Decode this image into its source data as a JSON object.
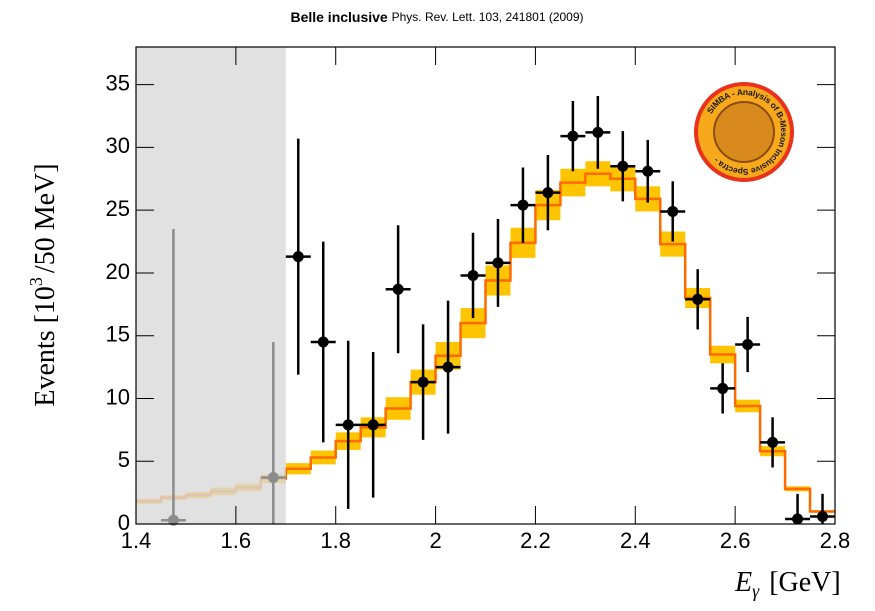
{
  "chart_data": {
    "type": "errorbar",
    "title": "Belle inclusive",
    "subtitle": "Phys. Rev. Lett. 103, 241801 (2009)",
    "x_label": [
      "E",
      "γ",
      "[GeV]"
    ],
    "y_label": [
      "Events [10",
      "3",
      "/50 MeV]"
    ],
    "logo_text": "SIMBA - Analysis of B-Meson Inclusive Spectra -",
    "xlim": [
      1.4,
      2.8
    ],
    "ylim": [
      0,
      38
    ],
    "xticks": [
      1.4,
      1.6,
      1.8,
      2,
      2.2,
      2.4,
      2.6,
      2.8
    ],
    "yticks": [
      0,
      5,
      10,
      15,
      20,
      25,
      30,
      35
    ],
    "excluded_range": [
      1.4,
      1.7
    ],
    "excluded_color": "#d9d9d9",
    "model": {
      "color": "#ff6a00",
      "band_color": "#ffc400",
      "bins": [
        1.4,
        1.45,
        1.5,
        1.55,
        1.6,
        1.65,
        1.7,
        1.75,
        1.8,
        1.85,
        1.9,
        1.95,
        2.0,
        2.05,
        2.1,
        2.15,
        2.2,
        2.25,
        2.3,
        2.35,
        2.4,
        2.45,
        2.5,
        2.55,
        2.6,
        2.65,
        2.7,
        2.75,
        2.8
      ],
      "values": [
        1.8,
        2.1,
        2.3,
        2.6,
        2.9,
        3.6,
        4.4,
        5.3,
        6.6,
        7.7,
        9.2,
        11.3,
        13.4,
        16.0,
        19.4,
        22.4,
        25.4,
        27.2,
        27.9,
        27.5,
        25.9,
        22.3,
        18.0,
        13.5,
        9.4,
        5.8,
        2.8,
        1.0
      ],
      "errors": [
        0.2,
        0.2,
        0.25,
        0.3,
        0.3,
        0.35,
        0.45,
        0.55,
        0.7,
        0.8,
        0.9,
        1.0,
        1.1,
        1.2,
        1.2,
        1.2,
        1.2,
        1.1,
        1.0,
        1.0,
        1.0,
        1.0,
        0.8,
        0.7,
        0.5,
        0.4,
        0.2,
        0.1
      ]
    },
    "excluded_data": {
      "color": "#8c8c8c",
      "x": [
        1.475,
        1.675
      ],
      "values": [
        0.3,
        3.7
      ],
      "errors": [
        23.2,
        10.8
      ]
    },
    "data": {
      "color": "#000000",
      "x": [
        1.725,
        1.775,
        1.825,
        1.875,
        1.925,
        1.975,
        2.025,
        2.075,
        2.125,
        2.175,
        2.225,
        2.275,
        2.325,
        2.375,
        2.425,
        2.475,
        2.525,
        2.575,
        2.625,
        2.675,
        2.725,
        2.775
      ],
      "values": [
        21.3,
        14.5,
        7.9,
        7.9,
        18.7,
        11.3,
        12.5,
        19.8,
        20.8,
        25.4,
        26.4,
        30.9,
        31.2,
        28.5,
        28.1,
        24.9,
        17.9,
        10.8,
        14.3,
        6.5,
        0.4,
        0.6
      ],
      "errors": [
        9.4,
        8.0,
        6.7,
        5.8,
        5.1,
        4.6,
        5.3,
        3.4,
        3.5,
        3.0,
        3.0,
        2.8,
        2.9,
        2.8,
        2.5,
        2.4,
        2.4,
        2.0,
        2.2,
        2.0,
        2.0,
        1.8
      ]
    }
  }
}
